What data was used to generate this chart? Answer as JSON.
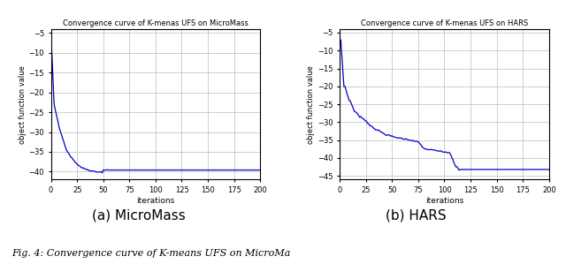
{
  "title1": "Convergence curve of K-menas UFS on MicroMass",
  "title2": "Convergence curve of K-menas UFS on HARS",
  "xlabel": "iterations",
  "ylabel": "object function value",
  "caption1": "(a) MicroMass",
  "caption2": "(b) HARS",
  "fig_caption": "Fig. 4: Convergence curve of K-means UFS on MicroMa",
  "line_color": "#0000cc",
  "xlim": [
    0,
    200
  ],
  "ylim1": [
    -42,
    -4
  ],
  "ylim2": [
    -46,
    -4
  ],
  "xticks": [
    0,
    25,
    50,
    75,
    100,
    125,
    150,
    175,
    200
  ],
  "yticks1": [
    -40,
    -35,
    -30,
    -25,
    -20,
    -15,
    -10,
    -5
  ],
  "yticks2": [
    -45,
    -40,
    -35,
    -30,
    -25,
    -20,
    -15,
    -10,
    -5
  ],
  "background_color": "#ffffff"
}
